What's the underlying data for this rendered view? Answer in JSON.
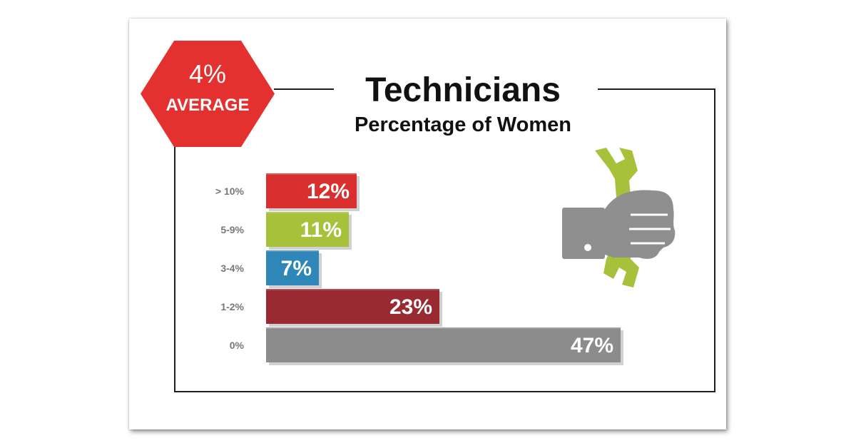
{
  "badge": {
    "value": "4%",
    "label": "AVERAGE",
    "color": "#e4312f"
  },
  "chart_data": {
    "type": "bar",
    "orientation": "horizontal",
    "title": "Technicians",
    "subtitle": "Percentage of Women",
    "categories": [
      "> 10%",
      "5-9%",
      "3-4%",
      "1-2%",
      "0%"
    ],
    "values": [
      12,
      11,
      7,
      23,
      47
    ],
    "value_labels": [
      "12%",
      "11%",
      "7%",
      "23%",
      "47%"
    ],
    "colors": [
      "#d92f2e",
      "#a8c13a",
      "#2f86b8",
      "#9a2a31",
      "#8c8c8c"
    ],
    "xlim": [
      0,
      47
    ],
    "grid": false,
    "legend": "none"
  },
  "icons": {
    "illustration": "hand-wrench-icon"
  }
}
